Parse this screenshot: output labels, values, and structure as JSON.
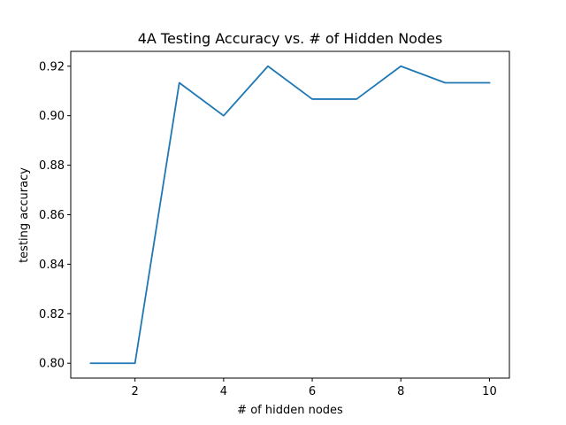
{
  "chart_data": {
    "type": "line",
    "title": "4A Testing Accuracy vs. # of Hidden Nodes",
    "xlabel": "# of hidden nodes",
    "ylabel": "testing accuracy",
    "xlim": [
      0.55,
      10.45
    ],
    "ylim": [
      0.794,
      0.926
    ],
    "xticks": [
      2,
      4,
      6,
      8,
      10
    ],
    "xtick_labels": [
      "2",
      "4",
      "6",
      "8",
      "10"
    ],
    "yticks": [
      0.8,
      0.82,
      0.84,
      0.86,
      0.88,
      0.9,
      0.92
    ],
    "ytick_labels": [
      "0.80",
      "0.82",
      "0.84",
      "0.86",
      "0.88",
      "0.90",
      "0.92"
    ],
    "grid": false,
    "legend": "none",
    "series": [
      {
        "color": "#1f77b4",
        "x": [
          1,
          2,
          3,
          4,
          5,
          6,
          7,
          8,
          9,
          10
        ],
        "y": [
          0.8,
          0.8,
          0.9133,
          0.9,
          0.92,
          0.9067,
          0.9067,
          0.92,
          0.9133,
          0.9133
        ]
      }
    ]
  }
}
